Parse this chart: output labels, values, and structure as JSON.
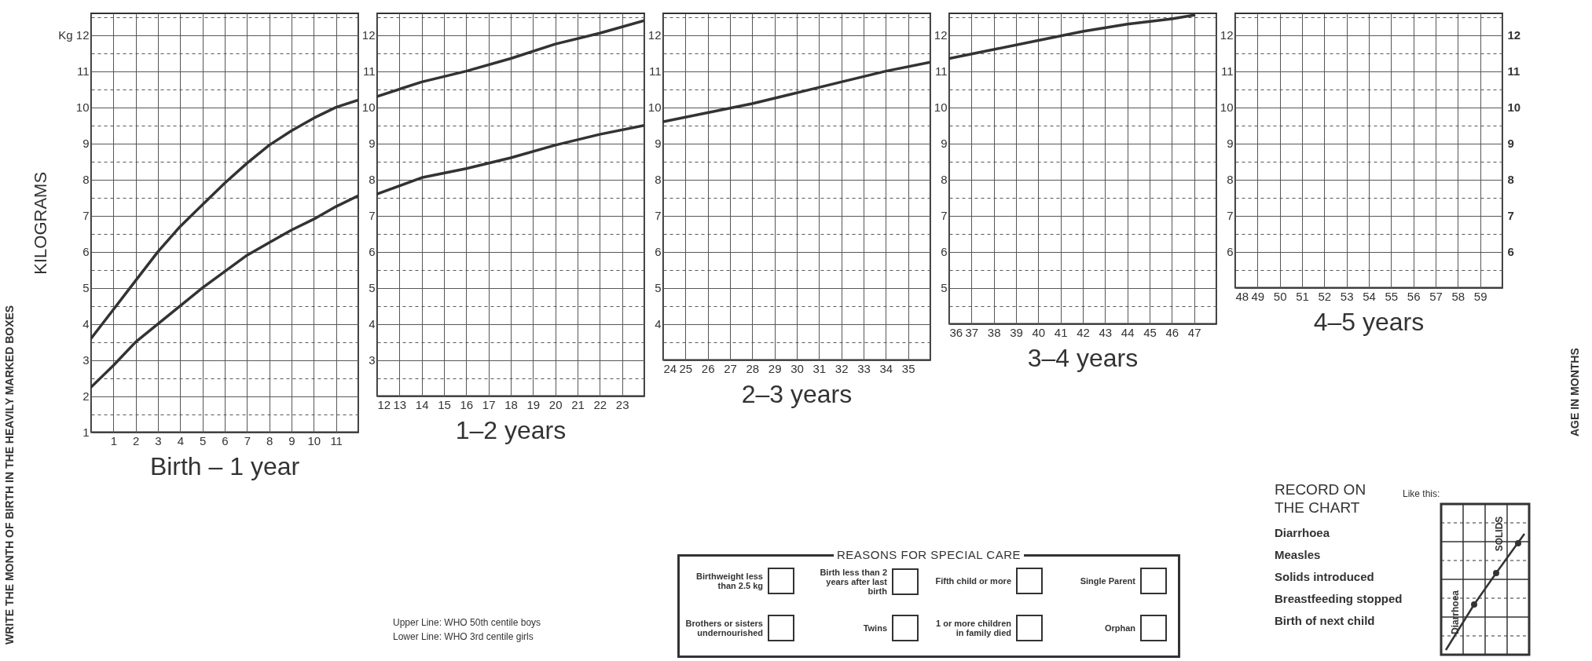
{
  "chart_data": [
    {
      "type": "line",
      "title": "Birth – 1 year",
      "ylabel": "KILOGRAMS",
      "grid": true,
      "x": [
        0,
        1,
        2,
        3,
        4,
        5,
        6,
        7,
        8,
        9,
        10,
        11,
        12
      ],
      "series": [
        {
          "color": "#333333",
          "values": [
            3.6,
            4.4,
            5.2,
            6.0,
            6.7,
            7.3,
            7.9,
            8.45,
            8.95,
            9.35,
            9.7,
            10.0,
            10.2
          ]
        },
        {
          "color": "#333333",
          "values": [
            2.25,
            2.85,
            3.5,
            4.0,
            4.5,
            5.0,
            5.45,
            5.9,
            6.25,
            6.6,
            6.9,
            7.25,
            7.55
          ]
        }
      ],
      "xlim": [
        0,
        12
      ],
      "xticks": [
        {
          "value": 0,
          "label": null
        },
        1,
        2,
        3,
        4,
        5,
        6,
        7,
        8,
        9,
        10,
        11,
        {
          "value": 12,
          "label": null
        }
      ],
      "ylim": [
        1,
        12.6
      ],
      "yticks": [
        1,
        {
          "value": 1.5,
          "label": null
        },
        2,
        {
          "value": 2.5,
          "label": null
        },
        3,
        {
          "value": 3.5,
          "label": null
        },
        4,
        {
          "value": 4.5,
          "label": null
        },
        5,
        {
          "value": 5.5,
          "label": null
        },
        6,
        {
          "value": 6.5,
          "label": null
        },
        7,
        {
          "value": 7.5,
          "label": null
        },
        8,
        {
          "value": 8.5,
          "label": null
        },
        9,
        {
          "value": 9.5,
          "label": null
        },
        10,
        {
          "value": 10.5,
          "label": null
        },
        11,
        {
          "value": 11.5,
          "label": null
        },
        {
          "value": 12,
          "label": "Kg 12"
        },
        {
          "value": 12.5,
          "label": null
        }
      ],
      "annotations": [
        "WRITE THE MONTH OF BIRTH IN THE HEAVILY MARKED BOXES",
        "Upper Line: WHO 50th centile boys",
        "Lower Line: WHO 3rd centile girls"
      ]
    },
    {
      "type": "line",
      "title": "1–2 years",
      "grid": true,
      "x": [
        12,
        14,
        16,
        18,
        20,
        22,
        24
      ],
      "series": [
        {
          "color": "#333333",
          "values": [
            10.3,
            10.7,
            11.0,
            11.35,
            11.75,
            12.05,
            12.4
          ]
        },
        {
          "color": "#333333",
          "values": [
            7.6,
            8.05,
            8.3,
            8.6,
            8.95,
            9.25,
            9.5
          ]
        }
      ],
      "xlim": [
        12,
        24
      ],
      "xticks": [
        12,
        13,
        14,
        15,
        16,
        17,
        18,
        19,
        20,
        21,
        22,
        23,
        {
          "value": 24,
          "label": null
        }
      ],
      "ylim": [
        2,
        12.6
      ],
      "yticks": [
        {
          "value": 2,
          "label": null
        },
        {
          "value": 2.5,
          "label": null
        },
        3,
        {
          "value": 3.5,
          "label": null
        },
        4,
        {
          "value": 4.5,
          "label": null
        },
        5,
        {
          "value": 5.5,
          "label": null
        },
        6,
        {
          "value": 6.5,
          "label": null
        },
        7,
        {
          "value": 7.5,
          "label": null
        },
        8,
        {
          "value": 8.5,
          "label": null
        },
        9,
        {
          "value": 9.5,
          "label": null
        },
        10,
        {
          "value": 10.5,
          "label": null
        },
        11,
        {
          "value": 11.5,
          "label": null
        },
        12,
        {
          "value": 12.5,
          "label": null
        }
      ]
    },
    {
      "type": "line",
      "title": "2–3 years",
      "grid": true,
      "x": [
        24,
        26,
        28,
        30,
        32,
        34,
        36
      ],
      "series": [
        {
          "color": "#333333",
          "values": [
            9.6,
            9.85,
            10.1,
            10.4,
            10.7,
            11.0,
            11.25
          ]
        }
      ],
      "xlim": [
        24,
        36
      ],
      "xticks": [
        24,
        25,
        26,
        27,
        28,
        29,
        30,
        31,
        32,
        33,
        34,
        35,
        {
          "value": 36,
          "label": null
        }
      ],
      "ylim": [
        3,
        12.6
      ],
      "yticks": [
        {
          "value": 3,
          "label": null
        },
        {
          "value": 3.5,
          "label": null
        },
        4,
        {
          "value": 4.5,
          "label": null
        },
        5,
        {
          "value": 5.5,
          "label": null
        },
        6,
        {
          "value": 6.5,
          "label": null
        },
        7,
        {
          "value": 7.5,
          "label": null
        },
        8,
        {
          "value": 8.5,
          "label": null
        },
        9,
        {
          "value": 9.5,
          "label": null
        },
        10,
        {
          "value": 10.5,
          "label": null
        },
        11,
        {
          "value": 11.5,
          "label": null
        },
        12,
        {
          "value": 12.5,
          "label": null
        }
      ],
      "annotations": [
        "REASONS FOR SPECIAL CARE",
        "Birthweight less than 2.5 kg",
        "Birth less than 2 years after last birth",
        "Fifth child or more",
        "Single Parent",
        "Brothers or sisters undernourished",
        "Twins",
        "1 or more children in family died",
        "Orphan"
      ]
    },
    {
      "type": "line",
      "title": "3–4 years",
      "grid": true,
      "x": [
        36,
        38,
        40,
        42,
        44,
        46,
        47
      ],
      "series": [
        {
          "color": "#333333",
          "values": [
            11.35,
            11.6,
            11.85,
            12.1,
            12.3,
            12.45,
            12.55
          ]
        }
      ],
      "xlim": [
        36,
        48
      ],
      "xticks": [
        36,
        37,
        38,
        39,
        40,
        41,
        42,
        43,
        44,
        45,
        46,
        47,
        {
          "value": 48,
          "label": null
        }
      ],
      "ylim": [
        4,
        12.6
      ],
      "yticks": [
        {
          "value": 4,
          "label": null
        },
        {
          "value": 4.5,
          "label": null
        },
        5,
        {
          "value": 5.5,
          "label": null
        },
        6,
        {
          "value": 6.5,
          "label": null
        },
        7,
        {
          "value": 7.5,
          "label": null
        },
        8,
        {
          "value": 8.5,
          "label": null
        },
        9,
        {
          "value": 9.5,
          "label": null
        },
        10,
        {
          "value": 10.5,
          "label": null
        },
        11,
        {
          "value": 11.5,
          "label": null
        },
        12,
        {
          "value": 12.5,
          "label": null
        }
      ]
    },
    {
      "type": "line",
      "title": "4–5 years",
      "grid": true,
      "xlim": [
        48,
        60
      ],
      "xticks": [
        48,
        49,
        50,
        51,
        52,
        53,
        54,
        55,
        56,
        57,
        58,
        59,
        {
          "value": 60,
          "label": null
        }
      ],
      "ylim": [
        5,
        12.6
      ],
      "yticks": [
        {
          "value": 5,
          "label": null
        },
        {
          "value": 5.5,
          "label": null
        },
        6,
        {
          "value": 6.5,
          "label": null
        },
        7,
        {
          "value": 7.5,
          "label": null
        },
        8,
        {
          "value": 8.5,
          "label": null
        },
        9,
        {
          "value": 9.5,
          "label": null
        },
        10,
        {
          "value": 10.5,
          "label": null
        },
        11,
        {
          "value": 11.5,
          "label": null
        },
        12,
        {
          "value": 12.5,
          "label": null
        }
      ],
      "y2lim": [
        5,
        12.6
      ],
      "y2ticks": [
        6,
        7,
        8,
        9,
        10,
        11,
        12
      ],
      "annotations": [
        "AGE IN MONTHS",
        "RECORD ON THE CHART",
        "Like this:",
        "Diarrhoea",
        "Measles",
        "Solids introduced",
        "Breastfeeding stopped",
        "Birth of next child",
        "Diarrhoea",
        "SOLIDS"
      ]
    }
  ]
}
